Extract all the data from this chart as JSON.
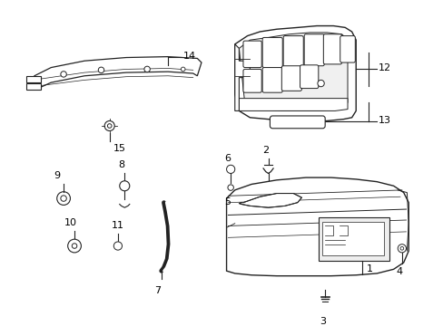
{
  "background_color": "#ffffff",
  "line_color": "#222222",
  "text_color": "#000000",
  "figsize": [
    4.89,
    3.6
  ],
  "dpi": 100
}
